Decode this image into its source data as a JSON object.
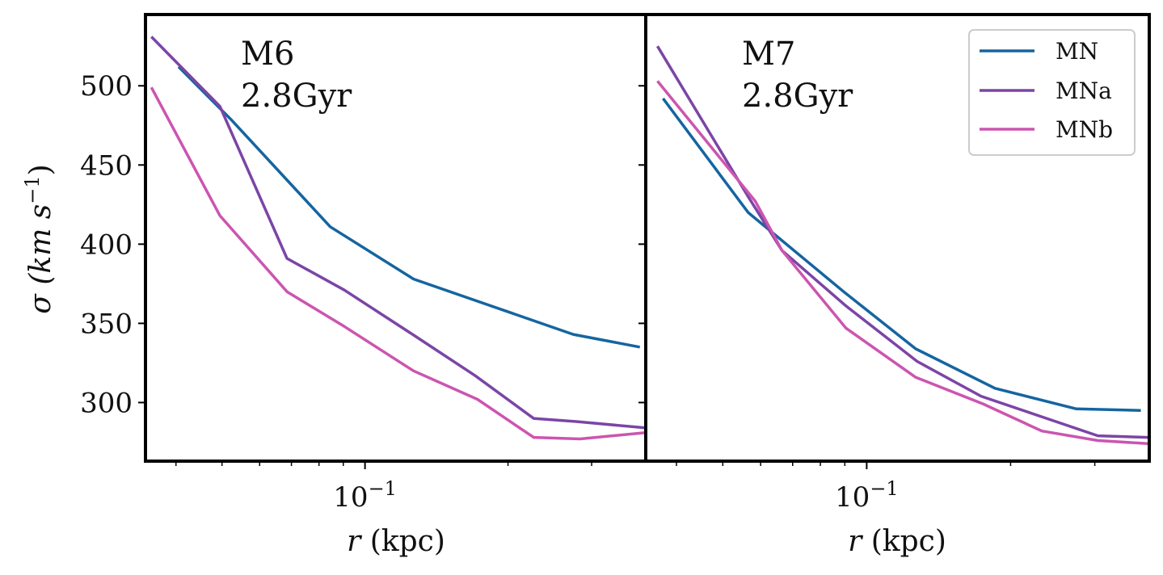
{
  "chart_data": [
    {
      "type": "line",
      "panel_title": "M6",
      "panel_subtitle": "2.8Gyr",
      "xscale": "log",
      "xlim": [
        0.0345,
        0.39
      ],
      "ylim": [
        263,
        545
      ],
      "xlabel_italic": "r",
      "xlabel_rest": "(kpc)",
      "ylabel": "σ (km s",
      "ylabel_exp": "−1",
      "ylabel_close": ")",
      "x_tick_label": {
        "base": "10",
        "exp": "−1",
        "value": 0.1
      },
      "y_ticks": [
        300,
        350,
        400,
        450,
        500
      ],
      "series": [
        {
          "name": "MN",
          "color": "#1565a0",
          "x": [
            0.0405,
            0.0525,
            0.0845,
            0.1265,
            0.2745,
            0.379
          ],
          "y": [
            512,
            478,
            411,
            378,
            343,
            335
          ]
        },
        {
          "name": "MNa",
          "color": "#7b45a6",
          "x": [
            0.0355,
            0.0495,
            0.0685,
            0.0905,
            0.1275,
            0.1705,
            0.2265,
            0.2785,
            0.389
          ],
          "y": [
            531,
            487,
            391,
            371,
            342,
            317,
            290,
            288,
            284
          ]
        },
        {
          "name": "MNb",
          "color": "#cc55b0",
          "x": [
            0.0355,
            0.0495,
            0.0685,
            0.0905,
            0.1265,
            0.1725,
            0.2265,
            0.2835,
            0.389
          ],
          "y": [
            499,
            418,
            370,
            348,
            320,
            302,
            278,
            277,
            281
          ]
        }
      ]
    },
    {
      "type": "line",
      "panel_title": "M7",
      "panel_subtitle": "2.8Gyr",
      "xscale": "log",
      "xlim": [
        0.0345,
        0.39
      ],
      "ylim": [
        263,
        545
      ],
      "xlabel_italic": "r",
      "xlabel_rest": "(kpc)",
      "x_tick_label": {
        "base": "10",
        "exp": "−1",
        "value": 0.1
      },
      "y_ticks": [
        300,
        350,
        400,
        450,
        500
      ],
      "legend": {
        "position": "top-right",
        "entries": [
          "MN",
          "MNa",
          "MNb"
        ]
      },
      "series": [
        {
          "name": "MN",
          "color": "#1565a0",
          "x": [
            0.0375,
            0.0565,
            0.0895,
            0.1265,
            0.1855,
            0.2745,
            0.3745
          ],
          "y": [
            492,
            420,
            370,
            334,
            309,
            296,
            295
          ]
        },
        {
          "name": "MNa",
          "color": "#7b45a6",
          "x": [
            0.0365,
            0.0565,
            0.0665,
            0.0905,
            0.1275,
            0.1735,
            0.2325,
            0.3045,
            0.3895
          ],
          "y": [
            525,
            430,
            396,
            361,
            326,
            304,
            291,
            279,
            278
          ]
        },
        {
          "name": "MNb",
          "color": "#cc55b0",
          "x": [
            0.0365,
            0.0585,
            0.0665,
            0.0905,
            0.1265,
            0.1755,
            0.2325,
            0.3045,
            0.3895
          ],
          "y": [
            503,
            427,
            396,
            347,
            316,
            299,
            282,
            276,
            274
          ]
        }
      ]
    }
  ]
}
